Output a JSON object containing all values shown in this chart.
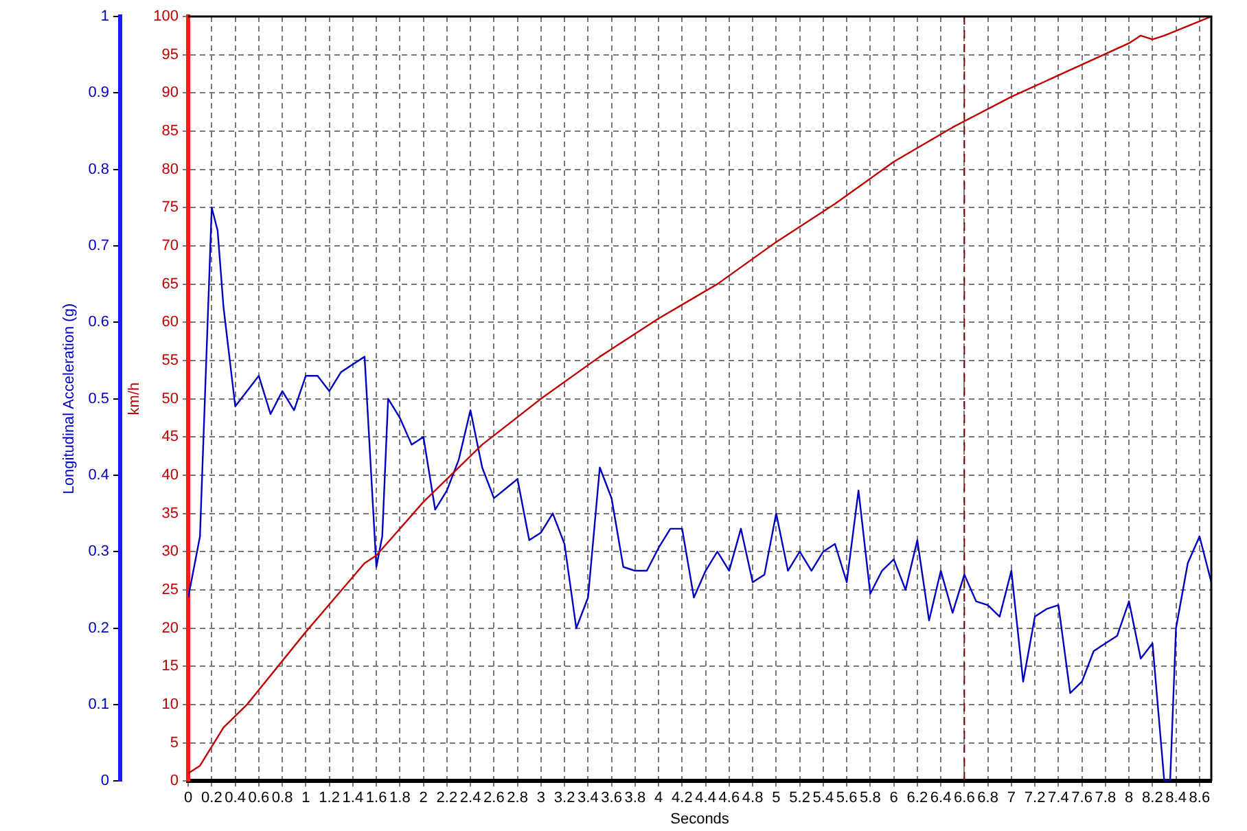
{
  "chart_data": {
    "type": "line",
    "xlabel": "Seconds",
    "ylabel": "km/h",
    "y2label": "Longitudinal Acceleration (g)",
    "xlim": [
      0,
      8.7
    ],
    "xticks": [
      0,
      0.2,
      0.4,
      0.6,
      0.8,
      1,
      1.2,
      1.4,
      1.6,
      1.8,
      2,
      2.2,
      2.4,
      2.6,
      2.8,
      3,
      3.2,
      3.4,
      3.6,
      3.8,
      4,
      4.2,
      4.4,
      4.6,
      4.8,
      5,
      5.2,
      5.4,
      5.6,
      5.8,
      6,
      6.2,
      6.4,
      6.6,
      6.8,
      7,
      7.2,
      7.4,
      7.6,
      7.8,
      8,
      8.2,
      8.4,
      8.6
    ],
    "ylim": [
      0,
      100
    ],
    "yticks": [
      0,
      5,
      10,
      15,
      20,
      25,
      30,
      35,
      40,
      45,
      50,
      55,
      60,
      65,
      70,
      75,
      80,
      85,
      90,
      95,
      100
    ],
    "y2lim": [
      0,
      1
    ],
    "y2ticks": [
      0,
      0.1,
      0.2,
      0.3,
      0.4,
      0.5,
      0.6,
      0.7,
      0.8,
      0.9,
      1
    ],
    "grid": true,
    "legend": false,
    "marker": "none",
    "line_style": "solid",
    "ref_lines": [
      {
        "axis": "x",
        "value": 6.6,
        "color": "#800000",
        "line_style": "dashed"
      }
    ],
    "series": [
      {
        "color": "#c00000",
        "x": [
          0,
          0.1,
          0.3,
          0.5,
          1,
          1.5,
          1.6,
          2,
          2.5,
          3,
          3.5,
          4,
          4.5,
          5,
          5.5,
          6,
          6.5,
          6.6,
          7,
          7.5,
          8,
          8.1,
          8.2,
          8.3,
          8.7
        ],
        "values": [
          1,
          2,
          7,
          10,
          19.5,
          28.5,
          29.5,
          36.5,
          44,
          50,
          55.5,
          60.5,
          65,
          70.5,
          75.5,
          81,
          85.5,
          86.3,
          89.5,
          93,
          96.5,
          97.5,
          97,
          97.5,
          100
        ]
      },
      {
        "color": "#0000c0",
        "axis": "y2",
        "x": [
          0,
          0.1,
          0.2,
          0.25,
          0.3,
          0.4,
          0.5,
          0.6,
          0.7,
          0.8,
          0.9,
          1,
          1.1,
          1.2,
          1.3,
          1.4,
          1.5,
          1.6,
          1.65,
          1.7,
          1.8,
          1.9,
          2,
          2.1,
          2.2,
          2.3,
          2.4,
          2.5,
          2.6,
          2.8,
          2.9,
          3,
          3.1,
          3.2,
          3.3,
          3.4,
          3.5,
          3.6,
          3.7,
          3.8,
          3.9,
          4,
          4.1,
          4.2,
          4.3,
          4.4,
          4.5,
          4.6,
          4.7,
          4.8,
          4.9,
          5,
          5.1,
          5.2,
          5.3,
          5.4,
          5.5,
          5.6,
          5.7,
          5.8,
          5.9,
          6,
          6.1,
          6.2,
          6.3,
          6.4,
          6.5,
          6.6,
          6.7,
          6.8,
          6.9,
          7,
          7.1,
          7.2,
          7.3,
          7.4,
          7.5,
          7.6,
          7.7,
          7.8,
          7.9,
          8,
          8.1,
          8.2,
          8.3,
          8.35,
          8.4,
          8.5,
          8.6,
          8.7
        ],
        "values": [
          0.24,
          0.32,
          0.75,
          0.72,
          0.62,
          0.49,
          0.51,
          0.53,
          0.48,
          0.51,
          0.485,
          0.53,
          0.53,
          0.51,
          0.535,
          0.545,
          0.555,
          0.28,
          0.32,
          0.5,
          0.475,
          0.44,
          0.45,
          0.355,
          0.38,
          0.42,
          0.485,
          0.41,
          0.37,
          0.395,
          0.315,
          0.325,
          0.35,
          0.31,
          0.2,
          0.24,
          0.41,
          0.37,
          0.28,
          0.275,
          0.275,
          0.305,
          0.33,
          0.33,
          0.24,
          0.275,
          0.3,
          0.275,
          0.33,
          0.26,
          0.27,
          0.35,
          0.275,
          0.3,
          0.275,
          0.3,
          0.31,
          0.26,
          0.38,
          0.245,
          0.275,
          0.29,
          0.25,
          0.315,
          0.21,
          0.275,
          0.22,
          0.27,
          0.235,
          0.23,
          0.215,
          0.275,
          0.13,
          0.215,
          0.225,
          0.23,
          0.115,
          0.13,
          0.17,
          0.18,
          0.19,
          0.235,
          0.16,
          0.18,
          0,
          0,
          0.2,
          0.285,
          0.32,
          0.26
        ]
      }
    ]
  }
}
